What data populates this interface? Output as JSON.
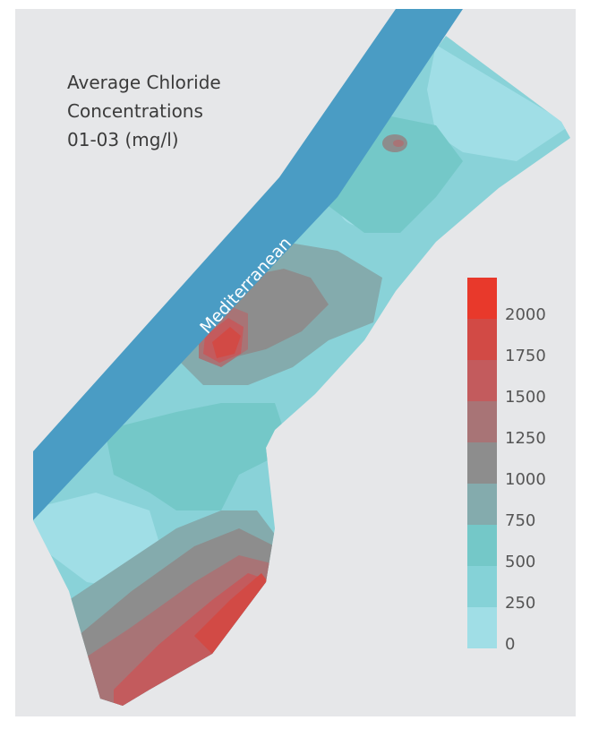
{
  "title": {
    "lines": [
      "Average Chloride",
      "Concentrations",
      "01-03 (mg/l)"
    ]
  },
  "sea_label": "Mediterranean",
  "legend": {
    "ticks": [
      "2000",
      "1750",
      "1500",
      "1250",
      "1000",
      "750",
      "500",
      "250",
      "0"
    ],
    "colors": [
      "#e8392b",
      "#d24a45",
      "#c35b5d",
      "#a87476",
      "#8d8d8d",
      "#84abad",
      "#74c8c8",
      "#85d2d7",
      "#a0dee6"
    ]
  },
  "colors": {
    "background": "#e6e7e9",
    "sea": "#4a9cc4",
    "land_base": "#89d2d8"
  }
}
